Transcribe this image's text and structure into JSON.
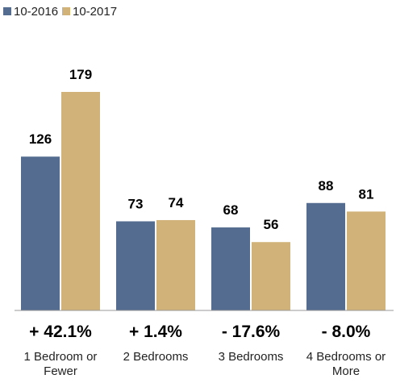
{
  "chart_data": {
    "type": "bar",
    "categories": [
      [
        "1 Bedroom or",
        "Fewer"
      ],
      [
        "2 Bedrooms"
      ],
      [
        "3 Bedrooms"
      ],
      [
        "4 Bedrooms or",
        "More"
      ]
    ],
    "series": [
      {
        "name": "10-2016",
        "values": [
          126,
          73,
          68,
          88
        ],
        "color": "#546c8f"
      },
      {
        "name": "10-2017",
        "values": [
          179,
          74,
          56,
          81
        ],
        "color": "#d1b379"
      }
    ],
    "change_labels": [
      "+ 42.1%",
      "+ 1.4%",
      "- 17.6%",
      "- 8.0%"
    ],
    "ylim": [
      0,
      200
    ],
    "legend_position": "top-left",
    "grid": false
  }
}
